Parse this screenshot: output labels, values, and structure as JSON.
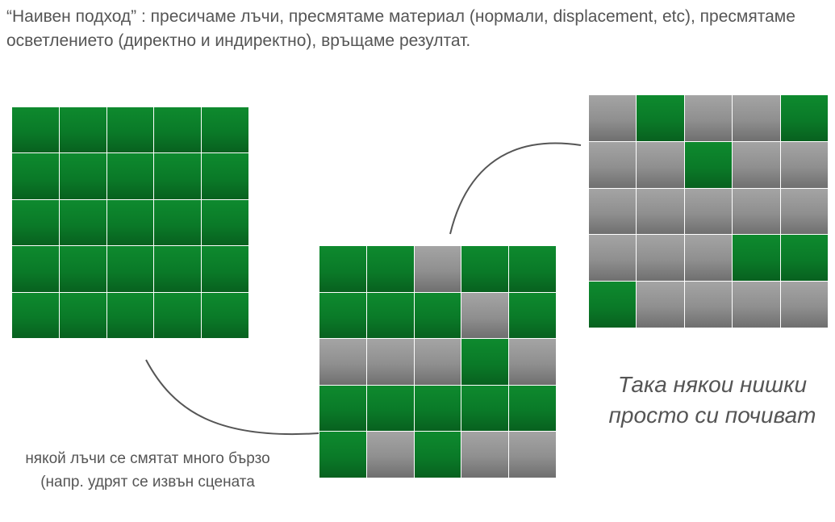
{
  "heading": "“Наивен подход” : пресичаме лъчи, пресмятаме материал (нормали, displacement, etc), пресмятаме осветлението (директно и индиректно), връщаме резултат.",
  "grids": [
    {
      "name": "all-active",
      "rows": [
        [
          "green",
          "green",
          "green",
          "green",
          "green"
        ],
        [
          "green",
          "green",
          "green",
          "green",
          "green"
        ],
        [
          "green",
          "green",
          "green",
          "green",
          "green"
        ],
        [
          "green",
          "green",
          "green",
          "green",
          "green"
        ],
        [
          "green",
          "green",
          "green",
          "green",
          "green"
        ]
      ]
    },
    {
      "name": "partially-active",
      "rows": [
        [
          "green",
          "green",
          "gray",
          "green",
          "green"
        ],
        [
          "green",
          "green",
          "green",
          "gray",
          "green"
        ],
        [
          "gray",
          "gray",
          "gray",
          "green",
          "gray"
        ],
        [
          "green",
          "green",
          "green",
          "green",
          "green"
        ],
        [
          "green",
          "gray",
          "green",
          "gray",
          "gray"
        ]
      ]
    },
    {
      "name": "mostly-idle",
      "rows": [
        [
          "gray",
          "green",
          "gray",
          "gray",
          "green"
        ],
        [
          "gray",
          "gray",
          "green",
          "gray",
          "gray"
        ],
        [
          "gray",
          "gray",
          "gray",
          "gray",
          "gray"
        ],
        [
          "gray",
          "gray",
          "gray",
          "green",
          "green"
        ],
        [
          "green",
          "gray",
          "gray",
          "gray",
          "gray"
        ]
      ]
    }
  ],
  "colors": {
    "active": "#0a7a28",
    "idle": "#8f8f8f",
    "text": "#555555",
    "connector": "#555555"
  },
  "caption_bottom": "някой лъчи се смятат много бързо (напр. удрят се извън сцената",
  "caption_right": "Така някои нишки просто си почиват"
}
